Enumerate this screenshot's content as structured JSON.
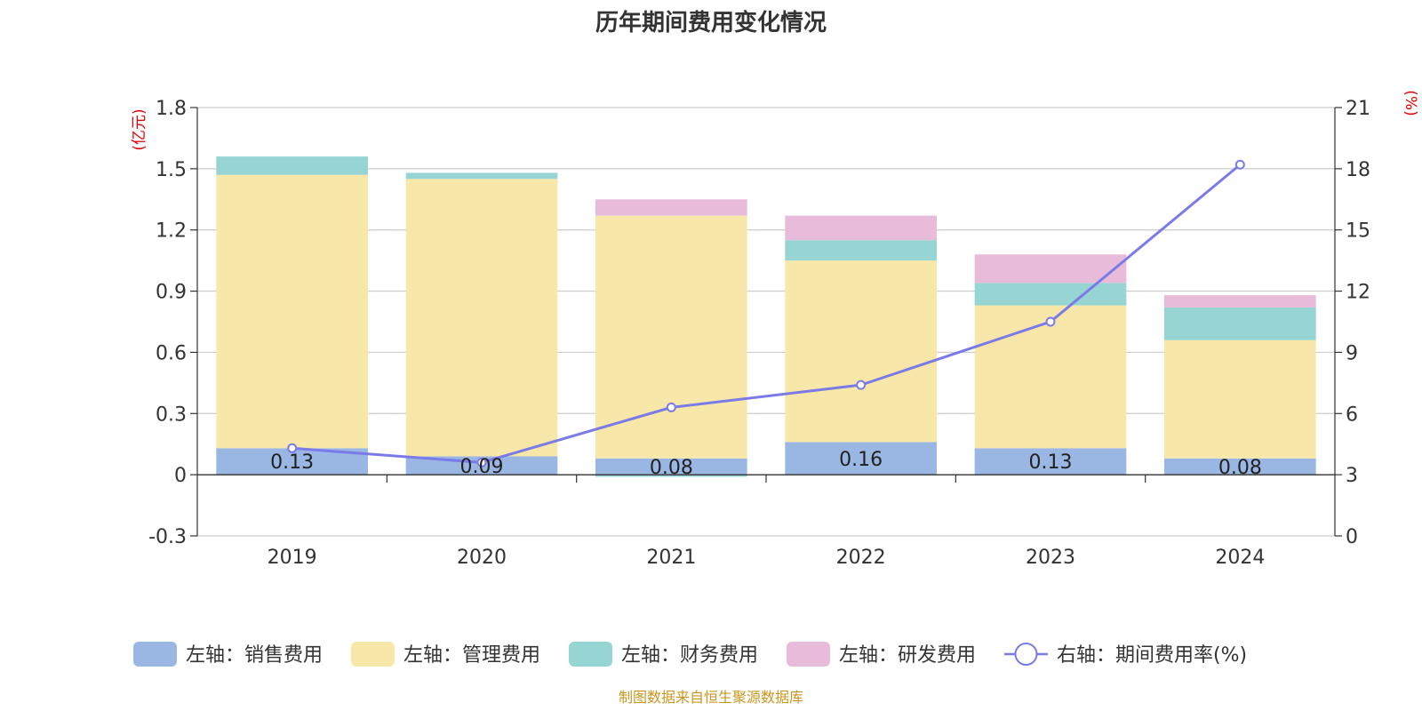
{
  "chart_data": {
    "type": "bar",
    "title": "历年期间费用变化情况",
    "categories": [
      "2019",
      "2020",
      "2021",
      "2022",
      "2023",
      "2024"
    ],
    "left_axis": {
      "unit": "(亿元)",
      "ylim": [
        -0.3,
        1.8
      ],
      "ticks": [
        -0.3,
        0,
        0.3,
        0.6,
        0.9,
        1.2,
        1.5,
        1.8
      ],
      "tick_labels": [
        "-0.3",
        "0",
        "0.3",
        "0.6",
        "0.9",
        "1.2",
        "1.5",
        "1.8"
      ]
    },
    "right_axis": {
      "unit": "(%)",
      "ylim": [
        0,
        21
      ],
      "ticks": [
        0,
        3,
        6,
        9,
        12,
        15,
        18,
        21
      ],
      "tick_labels": [
        "0",
        "3",
        "6",
        "9",
        "12",
        "15",
        "18",
        "21"
      ]
    },
    "series": [
      {
        "name": "左轴：销售费用",
        "type": "bar",
        "axis": "left",
        "color": "#9ab6e2",
        "values": [
          0.13,
          0.09,
          0.08,
          0.16,
          0.13,
          0.08
        ],
        "data_labels": [
          "0.13",
          "0.09",
          "0.08",
          "0.16",
          "0.13",
          "0.08"
        ]
      },
      {
        "name": "左轴：管理费用",
        "type": "bar",
        "axis": "left",
        "color": "#f7e7a8",
        "values": [
          1.34,
          1.36,
          1.19,
          0.89,
          0.7,
          0.58
        ]
      },
      {
        "name": "左轴：财务费用",
        "type": "bar",
        "axis": "left",
        "color": "#96d5d3",
        "values": [
          0.09,
          0.03,
          -0.01,
          0.1,
          0.11,
          0.16
        ]
      },
      {
        "name": "左轴：研发费用",
        "type": "bar",
        "axis": "left",
        "color": "#e9bbdb",
        "values": [
          0,
          0,
          0.08,
          0.12,
          0.14,
          0.06
        ]
      },
      {
        "name": "右轴：期间费用率(%)",
        "type": "line",
        "axis": "right",
        "color": "#7b7be8",
        "values": [
          4.3,
          3.6,
          6.3,
          7.4,
          10.5,
          18.2
        ]
      }
    ],
    "grid": true,
    "legend_position": "bottom"
  },
  "source": "制图数据来自恒生聚源数据库"
}
